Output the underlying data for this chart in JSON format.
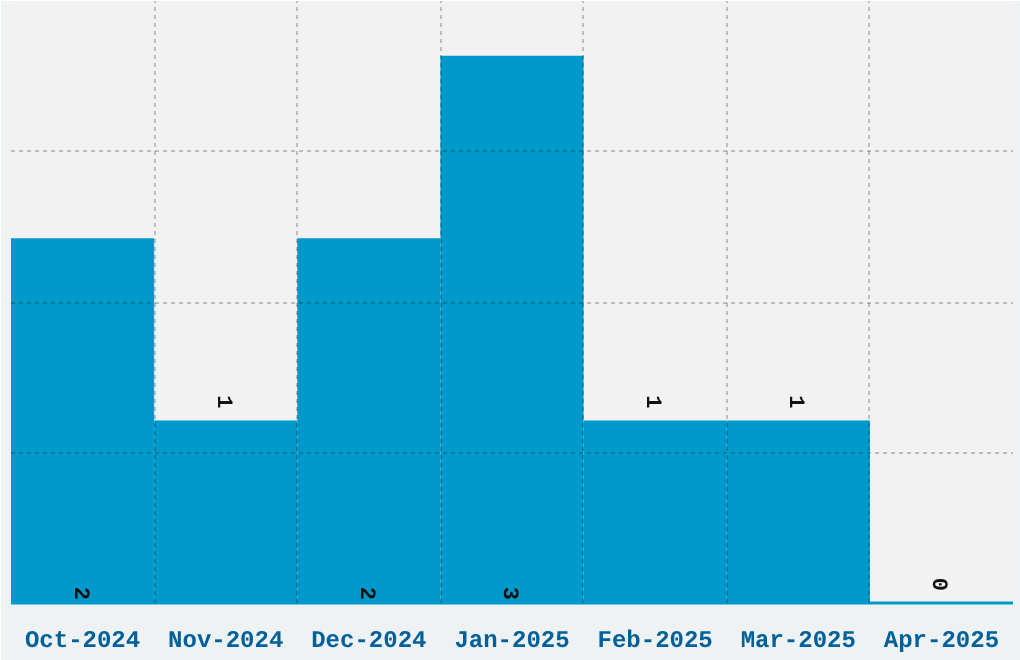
{
  "chart_data": {
    "type": "bar",
    "categories": [
      "Oct-2024",
      "Nov-2024",
      "Dec-2024",
      "Jan-2025",
      "Feb-2025",
      "Mar-2025",
      "Apr-2025"
    ],
    "values": [
      2,
      1,
      2,
      3,
      1,
      1,
      0
    ],
    "color": "#0099cc",
    "ylim": [
      0,
      3.3
    ],
    "yticks": [
      {
        "value": 0.825,
        "label": null
      },
      {
        "value": 1.65,
        "label": null
      },
      {
        "value": 2.475,
        "label": null
      },
      {
        "value": 3.3,
        "label": null
      }
    ],
    "tick_labels": "x",
    "grid": true,
    "data_labels": true
  }
}
